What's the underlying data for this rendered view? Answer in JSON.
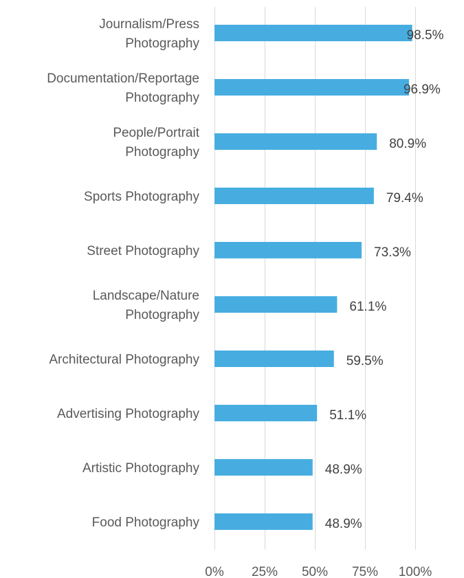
{
  "chart_data": {
    "type": "bar",
    "orientation": "horizontal",
    "categories": [
      "Journalism/Press Photography",
      "Documentation/Reportage Photography",
      "People/Portrait Photography",
      "Sports Photography",
      "Street Photography",
      "Landscape/Nature Photography",
      "Architectural Photography",
      "Advertising Photography",
      "Artistic Photography",
      "Food Photography"
    ],
    "category_lines": [
      [
        "Journalism/Press",
        "Photography"
      ],
      [
        "Documentation/Reportage",
        "Photography"
      ],
      [
        "People/Portrait",
        "Photography"
      ],
      [
        "Sports Photography"
      ],
      [
        "Street Photography"
      ],
      [
        "Landscape/Nature",
        "Photography"
      ],
      [
        "Architectural Photography"
      ],
      [
        "Advertising Photography"
      ],
      [
        "Artistic Photography"
      ],
      [
        "Food Photography"
      ]
    ],
    "values": [
      98.5,
      96.9,
      80.9,
      79.4,
      73.3,
      61.1,
      59.5,
      51.1,
      48.9,
      48.9
    ],
    "value_labels": [
      "98.5%",
      "96.9%",
      "80.9%",
      "79.4%",
      "73.3%",
      "61.1%",
      "59.5%",
      "51.1%",
      "48.9%",
      "48.9%"
    ],
    "x_ticks": [
      0,
      25,
      50,
      75,
      100
    ],
    "x_tick_labels": [
      "0%",
      "25%",
      "50%",
      "75%",
      "100%"
    ],
    "xlim": [
      0,
      100
    ],
    "title": "",
    "xlabel": "",
    "ylabel": "",
    "grid": true,
    "legend": "none",
    "colors": {
      "bar": "#47ADE0",
      "gridline": "#D9D9D9",
      "category_text": "#595959",
      "value_text": "#404040"
    }
  }
}
